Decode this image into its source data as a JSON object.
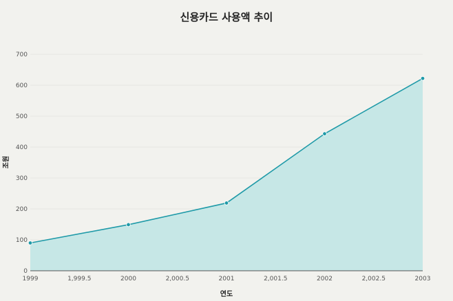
{
  "chart_data": {
    "type": "area",
    "title": "신용카드 사용액 추이",
    "xlabel": "연도",
    "ylabel": "조원",
    "x": [
      1999,
      2000,
      2001,
      2002,
      2003
    ],
    "series": [
      {
        "values": [
          90,
          149,
          219,
          443,
          622
        ]
      }
    ],
    "xlim": [
      1999,
      2003
    ],
    "ylim": [
      0,
      700
    ],
    "x_ticks": [
      "1999",
      "1,999.5",
      "2000",
      "2,000.5",
      "2001",
      "2,001.5",
      "2002",
      "2,002.5",
      "2003"
    ],
    "y_ticks": [
      "0",
      "100",
      "200",
      "300",
      "400",
      "500",
      "600",
      "700"
    ],
    "grid": true,
    "colors": {
      "line": "#1f9aa8",
      "fill": "#c6e7e6",
      "background": "#f2f2ee"
    }
  }
}
